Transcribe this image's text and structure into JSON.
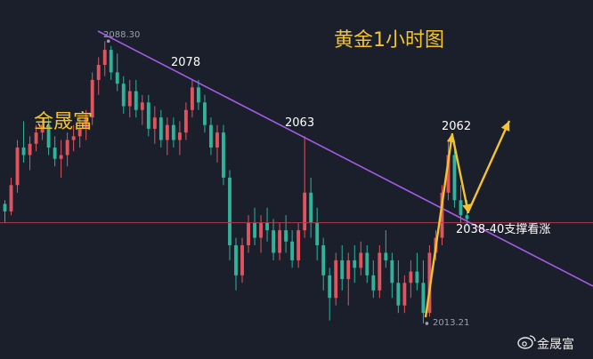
{
  "chart_data": {
    "type": "candlestick",
    "title": "黄金1小时图",
    "brand_label": "金晟富",
    "watermark_label": "金晟富",
    "ylim": [
      2008,
      2095
    ],
    "colors": {
      "up": "#e0545e",
      "down": "#2fb39a",
      "trendline": "#a55ce6",
      "support_line": "#b0394a",
      "arrow": "#f4c430"
    },
    "candles": [
      [
        2045,
        2046,
        2040,
        2043
      ],
      [
        2043,
        2052,
        2042,
        2050
      ],
      [
        2050,
        2062,
        2048,
        2060
      ],
      [
        2060,
        2067,
        2056,
        2058
      ],
      [
        2058,
        2063,
        2054,
        2061
      ],
      [
        2061,
        2066,
        2059,
        2064
      ],
      [
        2064,
        2068,
        2062,
        2066
      ],
      [
        2066,
        2068,
        2058,
        2060
      ],
      [
        2060,
        2063,
        2055,
        2057
      ],
      [
        2057,
        2062,
        2052,
        2058
      ],
      [
        2058,
        2064,
        2055,
        2062
      ],
      [
        2062,
        2066,
        2059,
        2063
      ],
      [
        2063,
        2068,
        2060,
        2065
      ],
      [
        2065,
        2070,
        2062,
        2068
      ],
      [
        2068,
        2080,
        2066,
        2078
      ],
      [
        2078,
        2084,
        2074,
        2082
      ],
      [
        2082,
        2088.3,
        2079,
        2086
      ],
      [
        2086,
        2087,
        2078,
        2080
      ],
      [
        2080,
        2085,
        2075,
        2077
      ],
      [
        2077,
        2079,
        2069,
        2071
      ],
      [
        2071,
        2078,
        2068,
        2075
      ],
      [
        2075,
        2078,
        2068,
        2070
      ],
      [
        2070,
        2074,
        2066,
        2072
      ],
      [
        2072,
        2074,
        2063,
        2065
      ],
      [
        2065,
        2071,
        2061,
        2068
      ],
      [
        2068,
        2070,
        2060,
        2062
      ],
      [
        2062,
        2068,
        2058,
        2066
      ],
      [
        2066,
        2068,
        2060,
        2062
      ],
      [
        2062,
        2067,
        2058,
        2064
      ],
      [
        2064,
        2072,
        2062,
        2070
      ],
      [
        2070,
        2078,
        2068,
        2076
      ],
      [
        2076,
        2078,
        2070,
        2072
      ],
      [
        2072,
        2074,
        2064,
        2066
      ],
      [
        2066,
        2068,
        2058,
        2060
      ],
      [
        2060,
        2066,
        2056,
        2064
      ],
      [
        2064,
        2066,
        2050,
        2052
      ],
      [
        2052,
        2054,
        2030,
        2034
      ],
      [
        2034,
        2036,
        2022,
        2026
      ],
      [
        2026,
        2036,
        2024,
        2034
      ],
      [
        2034,
        2042,
        2032,
        2040
      ],
      [
        2040,
        2044,
        2034,
        2036
      ],
      [
        2036,
        2042,
        2032,
        2040
      ],
      [
        2040,
        2044,
        2035,
        2038
      ],
      [
        2038,
        2041,
        2030,
        2032
      ],
      [
        2032,
        2040,
        2030,
        2038
      ],
      [
        2038,
        2042,
        2032,
        2035
      ],
      [
        2035,
        2038,
        2028,
        2030
      ],
      [
        2030,
        2040,
        2028,
        2038
      ],
      [
        2038,
        2063,
        2036,
        2048
      ],
      [
        2048,
        2052,
        2036,
        2040
      ],
      [
        2040,
        2044,
        2030,
        2034
      ],
      [
        2034,
        2036,
        2022,
        2026
      ],
      [
        2026,
        2028,
        2014,
        2020
      ],
      [
        2020,
        2032,
        2018,
        2030
      ],
      [
        2030,
        2034,
        2022,
        2025
      ],
      [
        2025,
        2032,
        2018,
        2030
      ],
      [
        2030,
        2034,
        2024,
        2028
      ],
      [
        2028,
        2035,
        2026,
        2032
      ],
      [
        2032,
        2034,
        2024,
        2026
      ],
      [
        2026,
        2030,
        2020,
        2022
      ],
      [
        2022,
        2034,
        2020,
        2032
      ],
      [
        2032,
        2038,
        2028,
        2030
      ],
      [
        2030,
        2032,
        2020,
        2024
      ],
      [
        2024,
        2030,
        2016,
        2018
      ],
      [
        2018,
        2026,
        2016,
        2024
      ],
      [
        2024,
        2030,
        2020,
        2027
      ],
      [
        2027,
        2032,
        2022,
        2024
      ],
      [
        2024,
        2030,
        2013.21,
        2016
      ],
      [
        2016,
        2034,
        2015,
        2032
      ],
      [
        2032,
        2038,
        2030,
        2036
      ],
      [
        2036,
        2050,
        2034,
        2048
      ],
      [
        2048,
        2062,
        2046,
        2058
      ],
      [
        2058,
        2060,
        2044,
        2046
      ],
      [
        2046,
        2050,
        2040,
        2042
      ],
      [
        2042,
        2046,
        2039,
        2041
      ]
    ],
    "annotations": [
      {
        "text": "2088.30",
        "style": "gray"
      },
      {
        "text": "2078",
        "style": "white"
      },
      {
        "text": "2063",
        "style": "white"
      },
      {
        "text": "2062",
        "style": "white"
      },
      {
        "text": "2013.21",
        "style": "gray"
      },
      {
        "text": "2038-40支撑看涨",
        "style": "white"
      }
    ],
    "support_level": 2040
  }
}
